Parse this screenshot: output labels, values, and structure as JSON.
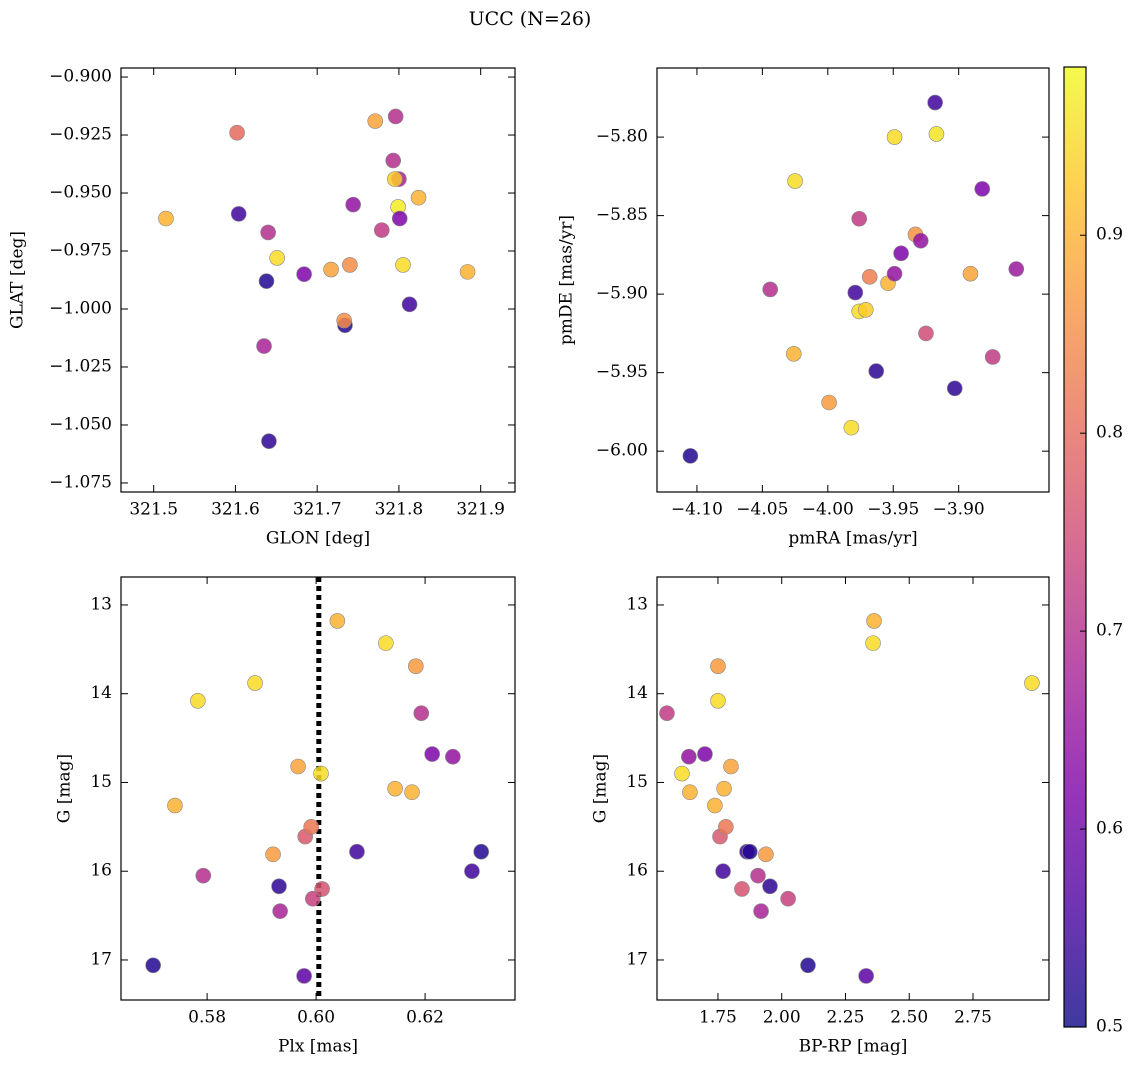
{
  "title": "UCC (N=26)",
  "colorbar": {
    "cmap": "plasma",
    "clim": [
      0.5,
      0.985
    ],
    "ticks": [
      0.5,
      0.6,
      0.7,
      0.8,
      0.9
    ]
  },
  "chart_data": [
    {
      "type": "scatter",
      "xlabel": "GLON [deg]",
      "ylabel": "GLAT [deg]",
      "xlim": [
        321.46,
        321.942
      ],
      "ylim": [
        -1.0789,
        -0.8961
      ],
      "xticks": [
        321.5,
        321.6,
        321.7,
        321.8,
        321.9
      ],
      "yticks": [
        {
          "value": -0.9,
          "label": "−0.900"
        },
        {
          "value": -0.925,
          "label": "−0.925"
        },
        {
          "value": -0.95,
          "label": "−0.950"
        },
        {
          "value": -0.975,
          "label": "−0.975"
        },
        {
          "value": -1,
          "label": "−1.000"
        },
        {
          "value": -1.025,
          "label": "−1.025"
        },
        {
          "value": -1.05,
          "label": "−1.050"
        },
        {
          "value": -1.075,
          "label": "−1.075"
        }
      ],
      "x": [
        321.515,
        321.602,
        321.604,
        321.64,
        321.651,
        321.638,
        321.635,
        321.641,
        321.684,
        321.717,
        321.74,
        321.734,
        321.733,
        321.744,
        321.779,
        321.771,
        321.796,
        321.793,
        321.8,
        321.795,
        321.799,
        321.801,
        321.805,
        321.813,
        321.824,
        321.884
      ],
      "y": [
        -0.961,
        -0.924,
        -0.959,
        -0.967,
        -0.978,
        -0.988,
        -1.016,
        -1.057,
        -0.985,
        -0.983,
        -0.981,
        -1.007,
        -1.005,
        -0.955,
        -0.966,
        -0.919,
        -0.917,
        -0.936,
        -0.944,
        -0.944,
        -0.956,
        -0.961,
        -0.981,
        -0.998,
        -0.952,
        -0.984
      ],
      "c": [
        0.9,
        0.8,
        0.55,
        0.7,
        0.95,
        0.52,
        0.68,
        0.53,
        0.62,
        0.88,
        0.85,
        0.52,
        0.85,
        0.65,
        0.72,
        0.88,
        0.7,
        0.7,
        0.68,
        0.93,
        0.97,
        0.62,
        0.95,
        0.55,
        0.9,
        0.9
      ]
    },
    {
      "type": "scatter",
      "xlabel": "pmRA [mas/yr]",
      "ylabel": "pmDE [mas/yr]",
      "xlim": [
        -4.1305,
        -3.831
      ],
      "ylim": [
        -6.026,
        -5.756
      ],
      "xticks": [
        {
          "value": -4.1,
          "label": "−4.10"
        },
        {
          "value": -4.05,
          "label": "−4.05"
        },
        {
          "value": -4,
          "label": "−4.00"
        },
        {
          "value": -3.95,
          "label": "−3.95"
        },
        {
          "value": -3.9,
          "label": "−3.90"
        }
      ],
      "yticks": [
        {
          "value": -5.8,
          "label": "−5.80"
        },
        {
          "value": -5.85,
          "label": "−5.85"
        },
        {
          "value": -5.9,
          "label": "−5.90"
        },
        {
          "value": -5.95,
          "label": "−5.95"
        },
        {
          "value": -6,
          "label": "−6.00"
        }
      ],
      "x": [
        -4.105,
        -4.044,
        -4.025,
        -4.026,
        -3.999,
        -3.982,
        -3.979,
        -3.976,
        -3.976,
        -3.971,
        -3.968,
        -3.963,
        -3.954,
        -3.949,
        -3.949,
        -3.944,
        -3.933,
        -3.929,
        -3.925,
        -3.918,
        -3.917,
        -3.903,
        -3.891,
        -3.882,
        -3.874,
        -3.856
      ],
      "y": [
        -6.003,
        -5.897,
        -5.828,
        -5.938,
        -5.969,
        -5.985,
        -5.899,
        -5.852,
        -5.911,
        -5.91,
        -5.889,
        -5.949,
        -5.893,
        -5.8,
        -5.887,
        -5.874,
        -5.862,
        -5.866,
        -5.925,
        -5.778,
        -5.798,
        -5.96,
        -5.887,
        -5.833,
        -5.94,
        -5.884
      ],
      "c": [
        0.52,
        0.7,
        0.95,
        0.9,
        0.87,
        0.95,
        0.55,
        0.72,
        0.95,
        0.93,
        0.83,
        0.53,
        0.9,
        0.95,
        0.65,
        0.62,
        0.86,
        0.65,
        0.75,
        0.55,
        0.96,
        0.53,
        0.88,
        0.62,
        0.72,
        0.66
      ]
    },
    {
      "type": "scatter",
      "xlabel": "Plx [mas]",
      "ylabel": "G [mag]",
      "xlim": [
        0.5642,
        0.6365
      ],
      "ylim": [
        17.451,
        12.685
      ],
      "xticks": [
        0.58,
        {
          "value": 0.6,
          "label": "0.60"
        },
        0.62
      ],
      "yticks": [
        13,
        14,
        15,
        16,
        17
      ],
      "vline": 0.6005,
      "x": [
        0.5701,
        0.5741,
        0.5783,
        0.5793,
        0.5888,
        0.5921,
        0.5932,
        0.5934,
        0.5967,
        0.5978,
        0.598,
        0.5991,
        0.5994,
        0.6009,
        0.6011,
        0.6039,
        0.6075,
        0.6128,
        0.6145,
        0.6176,
        0.6183,
        0.6193,
        0.6213,
        0.6251,
        0.6286,
        0.6303
      ],
      "y": [
        17.06,
        15.26,
        14.08,
        16.05,
        13.88,
        15.81,
        16.17,
        16.45,
        14.82,
        17.18,
        15.61,
        15.5,
        16.31,
        14.9,
        16.2,
        13.18,
        15.78,
        13.43,
        15.07,
        15.11,
        13.69,
        14.22,
        14.68,
        14.71,
        16.0,
        15.78
      ],
      "c": [
        0.52,
        0.9,
        0.95,
        0.7,
        0.95,
        0.87,
        0.53,
        0.68,
        0.88,
        0.58,
        0.77,
        0.82,
        0.73,
        0.95,
        0.76,
        0.9,
        0.55,
        0.95,
        0.9,
        0.9,
        0.87,
        0.7,
        0.62,
        0.65,
        0.55,
        0.52
      ]
    },
    {
      "type": "scatter",
      "xlabel": "BP-RP [mag]",
      "ylabel": "G [mag]",
      "xlim": [
        1.511,
        3.048
      ],
      "ylim": [
        17.451,
        12.685
      ],
      "xticks": [
        1.75,
        {
          "value": 2,
          "label": "2.00"
        },
        2.25,
        {
          "value": 2.5,
          "label": "2.50"
        },
        2.75
      ],
      "yticks": [
        13,
        14,
        15,
        16,
        17
      ],
      "x": [
        1.55,
        1.609,
        1.636,
        1.64,
        1.699,
        1.738,
        1.75,
        1.75,
        1.758,
        1.77,
        1.774,
        1.781,
        1.801,
        1.844,
        1.864,
        1.875,
        1.907,
        1.919,
        1.938,
        1.954,
        2.025,
        2.103,
        2.331,
        2.358,
        2.362,
        2.981
      ],
      "y": [
        14.22,
        14.9,
        14.71,
        15.11,
        14.68,
        15.26,
        13.69,
        14.08,
        15.61,
        16.0,
        15.07,
        15.5,
        14.82,
        16.2,
        15.78,
        15.78,
        16.05,
        16.45,
        15.81,
        16.17,
        16.31,
        17.06,
        17.18,
        13.43,
        13.18,
        13.88
      ],
      "c": [
        0.72,
        0.95,
        0.65,
        0.9,
        0.62,
        0.9,
        0.87,
        0.95,
        0.77,
        0.55,
        0.9,
        0.82,
        0.88,
        0.76,
        0.55,
        0.52,
        0.7,
        0.68,
        0.87,
        0.53,
        0.73,
        0.52,
        0.58,
        0.95,
        0.9,
        0.95
      ]
    }
  ]
}
